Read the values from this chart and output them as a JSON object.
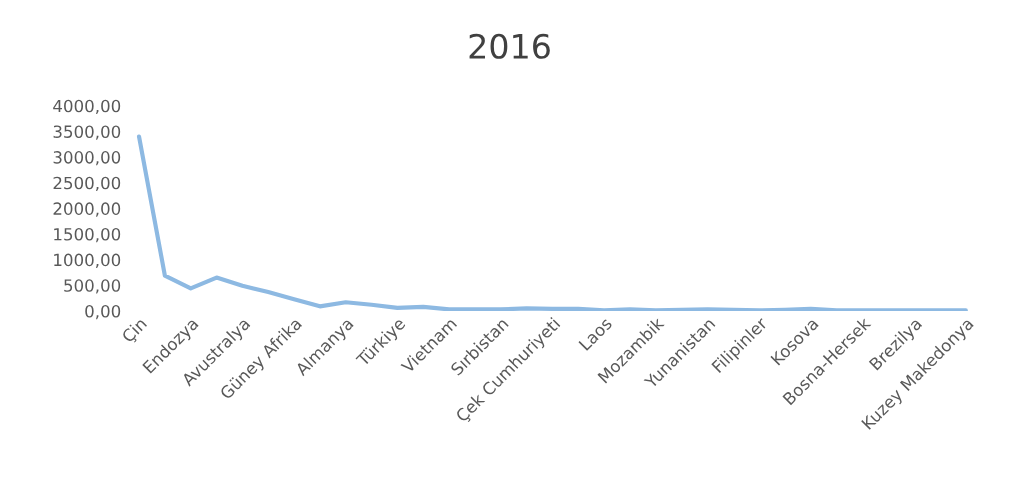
{
  "chart_data": {
    "type": "line",
    "title": "2016",
    "categories": [
      "Çin",
      null,
      "Endozya",
      null,
      "Avustralya",
      null,
      "Güney Afrika",
      null,
      "Almanya",
      null,
      "Türkiye",
      null,
      "Vietnam",
      null,
      "Sırbistan",
      null,
      "Çek Cumhuriyeti",
      null,
      "Laos",
      null,
      "Mozambik",
      null,
      "Yunanistan",
      null,
      "Filipinler",
      null,
      "Kosova",
      null,
      "Bosna-Hersek",
      null,
      "Brezilya",
      null,
      "Kuzey Makedonya"
    ],
    "series": [
      {
        "color": "#8db9e2",
        "values": [
          3400,
          690,
          440,
          650,
          490,
          370,
          230,
          90,
          170,
          120,
          60,
          80,
          30,
          30,
          30,
          50,
          40,
          40,
          10,
          30,
          10,
          20,
          30,
          20,
          10,
          20,
          40,
          10,
          10,
          10,
          10,
          10,
          10
        ]
      }
    ],
    "ylim": [
      0,
      4000
    ],
    "yticks": [
      {
        "value": 0,
        "label": "0,00"
      },
      {
        "value": 500,
        "label": "500,00"
      },
      {
        "value": 1000,
        "label": "1000,00"
      },
      {
        "value": 1500,
        "label": "1500,00"
      },
      {
        "value": 2000,
        "label": "2000,00"
      },
      {
        "value": 2500,
        "label": "2500,00"
      },
      {
        "value": 3000,
        "label": "3000,00"
      },
      {
        "value": 3500,
        "label": "3500,00"
      },
      {
        "value": 4000,
        "label": "4000,00"
      }
    ],
    "grid": false,
    "marker": "none",
    "line_style": "solid"
  }
}
